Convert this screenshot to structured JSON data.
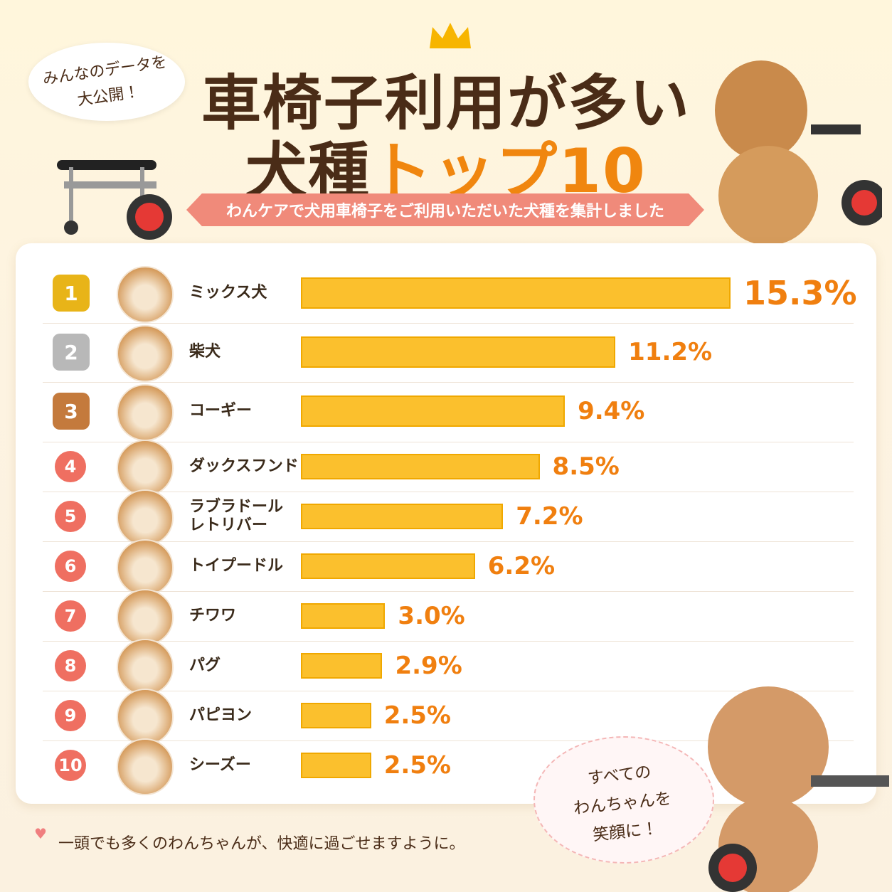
{
  "chart_data": {
    "type": "bar",
    "badge": [
      "みんなのデータを",
      "大公開！"
    ],
    "title": "車椅子利用が多い",
    "title_line2": [
      "犬種",
      "トップ10"
    ],
    "subtitle": "わんケアで犬用車椅子をご利用いただいた犬種を集計しました",
    "ranks": [
      1,
      2,
      3,
      4,
      5,
      6,
      7,
      8,
      9,
      10
    ],
    "categories": [
      "ミックス犬",
      "柴犬",
      "コーギー",
      "ダックスフンド",
      "ラブラドール\nレトリバー",
      "トイプードル",
      "チワワ",
      "パグ",
      "パピヨン",
      "シーズー"
    ],
    "values": [
      15.3,
      11.2,
      9.4,
      8.5,
      7.2,
      6.2,
      3.0,
      2.9,
      2.5,
      2.5
    ],
    "value_labels": [
      "15.3%",
      "11.2%",
      "9.4%",
      "8.5%",
      "7.2%",
      "6.2%",
      "3.0%",
      "2.9%",
      "2.5%",
      "2.5%"
    ],
    "color": "#fbc02d",
    "label_color": "#f07f0f",
    "footer": "一頭でも多くのわんちゃんが、快適に過ごせますように。",
    "cloud": [
      "すべての",
      "わんちゃんを",
      "笑顔に！"
    ]
  }
}
